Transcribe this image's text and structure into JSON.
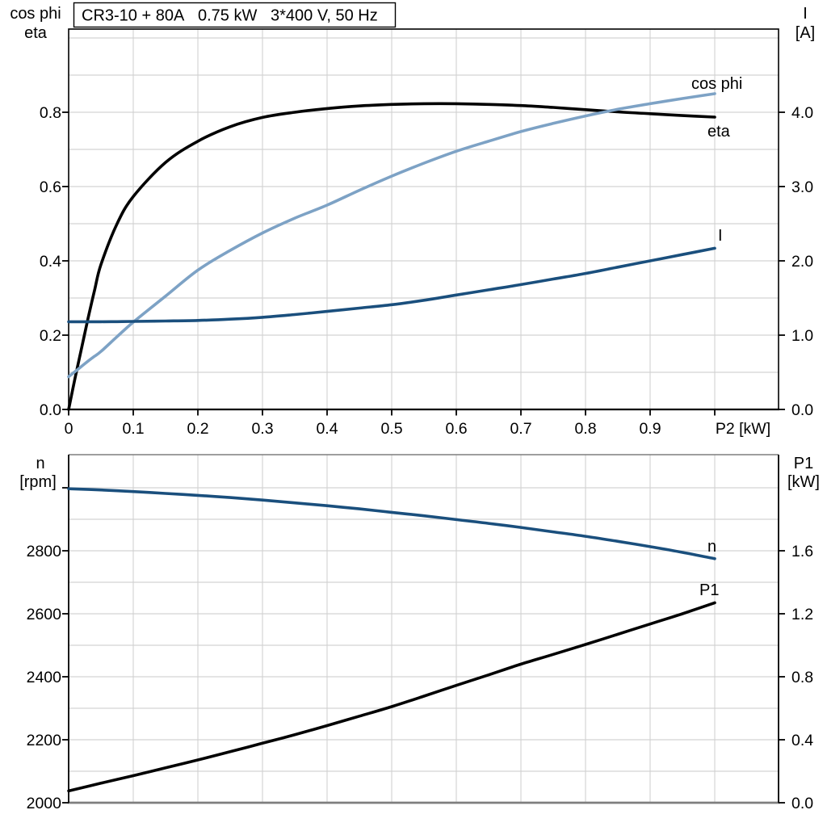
{
  "title": "CR3-10 + 80A   0.75 kW   3*400 V, 50 Hz",
  "colors": {
    "curve_black": "#000000",
    "curve_dark_blue": "#1a4f7d",
    "curve_light_blue": "#7da2c5",
    "grid": "#d3d3d3",
    "frame_gray": "#7f7f7f",
    "axis_black": "#000000",
    "background": "#ffffff"
  },
  "top_chart": {
    "left_axis_title_line1": "cos phi",
    "left_axis_title_line2": "eta",
    "right_axis_title_line1": "I",
    "right_axis_title_line2": "[A]",
    "x_axis_title": "P2 [kW]",
    "x_tick_labels": [
      "0",
      "0.1",
      "0.2",
      "0.3",
      "0.4",
      "0.5",
      "0.6",
      "0.7",
      "0.8",
      "0.9"
    ],
    "left_tick_labels": [
      "0.0",
      "0.2",
      "0.4",
      "0.6",
      "0.8"
    ],
    "right_tick_labels": [
      "0.0",
      "1.0",
      "2.0",
      "3.0",
      "4.0"
    ],
    "curve_labels": {
      "cos_phi": "cos phi",
      "eta": "eta",
      "current": "I"
    }
  },
  "bottom_chart": {
    "left_axis_title_line1": "n",
    "left_axis_title_line2": "[rpm]",
    "right_axis_title_line1": "P1",
    "right_axis_title_line2": "[kW]",
    "left_tick_labels": [
      "2000",
      "2200",
      "2400",
      "2600",
      "2800"
    ],
    "right_tick_labels": [
      "0.0",
      "0.4",
      "0.8",
      "1.2",
      "1.6"
    ],
    "curve_labels": {
      "speed": "n",
      "power_in": "P1"
    }
  },
  "chart_data": [
    {
      "type": "line",
      "title": "CR3-10 + 80A  0.75 kW  3*400 V, 50 Hz",
      "xlabel": "P2 [kW]",
      "x_range": [
        0,
        1.1
      ],
      "left_ylabel": "cos phi / eta",
      "left_ylim": [
        0,
        1.0
      ],
      "right_ylabel": "I [A]",
      "right_ylim": [
        0,
        5.0
      ],
      "grid": true,
      "legend_position": "inline-end-of-curve",
      "x": [
        0,
        0.01,
        0.02,
        0.03,
        0.04,
        0.05,
        0.075,
        0.1,
        0.15,
        0.2,
        0.25,
        0.3,
        0.35,
        0.4,
        0.45,
        0.5,
        0.55,
        0.6,
        0.65,
        0.7,
        0.75,
        0.8,
        0.85,
        0.9,
        0.95,
        1.0
      ],
      "series": [
        {
          "name": "eta",
          "axis": "left",
          "color": "curve_black",
          "values": [
            0,
            0.085,
            0.165,
            0.245,
            0.32,
            0.39,
            0.5,
            0.573,
            0.665,
            0.722,
            0.761,
            0.786,
            0.8,
            0.81,
            0.817,
            0.821,
            0.823,
            0.823,
            0.821,
            0.818,
            0.813,
            0.807,
            0.801,
            0.796,
            0.791,
            0.787
          ]
        },
        {
          "name": "cos phi",
          "axis": "left",
          "color": "curve_light_blue",
          "values": [
            0.088,
            0.102,
            0.116,
            0.13,
            0.143,
            0.156,
            0.196,
            0.235,
            0.305,
            0.375,
            0.428,
            0.475,
            0.515,
            0.55,
            0.59,
            0.628,
            0.663,
            0.695,
            0.722,
            0.748,
            0.77,
            0.79,
            0.808,
            0.823,
            0.837,
            0.85
          ]
        },
        {
          "name": "I",
          "axis": "right",
          "color": "curve_dark_blue",
          "values": [
            1.18,
            1.18,
            1.18,
            1.18,
            1.18,
            1.18,
            1.182,
            1.185,
            1.19,
            1.198,
            1.215,
            1.24,
            1.277,
            1.32,
            1.364,
            1.41,
            1.47,
            1.54,
            1.61,
            1.68,
            1.755,
            1.83,
            1.915,
            2.0,
            2.085,
            2.17
          ]
        }
      ]
    },
    {
      "type": "line",
      "xlabel": "P2 [kW]",
      "x_range": [
        0,
        1.1
      ],
      "left_ylabel": "n [rpm]",
      "left_ylim": [
        2000,
        3100
      ],
      "right_ylabel": "P1 [kW]",
      "right_ylim": [
        0,
        2.2
      ],
      "grid": true,
      "legend_position": "inline-end-of-curve",
      "x": [
        0,
        0.05,
        0.1,
        0.15,
        0.2,
        0.25,
        0.3,
        0.35,
        0.4,
        0.45,
        0.5,
        0.55,
        0.6,
        0.65,
        0.7,
        0.75,
        0.8,
        0.85,
        0.9,
        0.95,
        1.0
      ],
      "series": [
        {
          "name": "n",
          "axis": "left",
          "color": "curve_dark_blue",
          "values": [
            2997,
            2993,
            2988,
            2982,
            2976,
            2969,
            2961,
            2952,
            2943,
            2933,
            2922,
            2911,
            2899,
            2887,
            2874,
            2860,
            2846,
            2830,
            2813,
            2795,
            2775
          ]
        },
        {
          "name": "P1",
          "axis": "right",
          "color": "curve_black",
          "values": [
            0.075,
            0.124,
            0.172,
            0.222,
            0.272,
            0.324,
            0.378,
            0.432,
            0.49,
            0.55,
            0.61,
            0.677,
            0.745,
            0.812,
            0.88,
            0.942,
            1.005,
            1.07,
            1.135,
            1.2,
            1.27
          ]
        }
      ]
    }
  ]
}
